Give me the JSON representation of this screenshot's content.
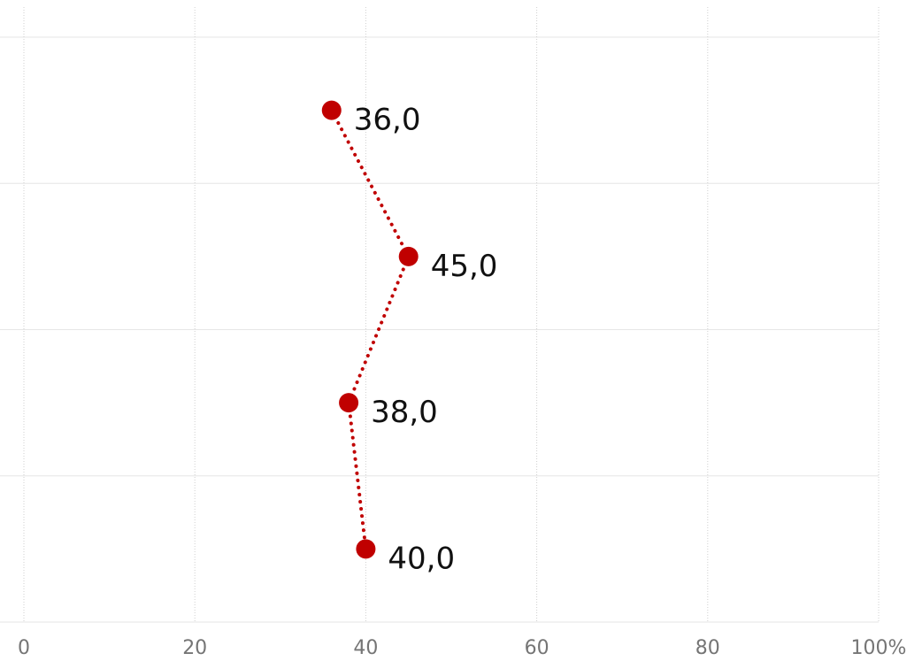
{
  "chart_data": {
    "type": "line",
    "orientation": "horizontal-values",
    "title": "",
    "xlabel": "",
    "ylabel": "",
    "xlim": [
      0,
      100
    ],
    "x_ticks": [
      0,
      20,
      40,
      60,
      80,
      100
    ],
    "x_tick_labels": [
      "0",
      "20",
      "40",
      "60",
      "80",
      "100%"
    ],
    "categories": [
      "",
      "",
      "",
      ""
    ],
    "series": [
      {
        "values": [
          36,
          45,
          38,
          40
        ],
        "labels": [
          "36,0",
          "45,0",
          "38,0",
          "40,0"
        ],
        "color": "#C00000",
        "line_style": "dotted",
        "marker": "circle"
      }
    ],
    "grid": true,
    "legend": "none",
    "colors": {
      "series": "#C00000",
      "grid": "#e6e6e6",
      "vertical_grid": "#cfcfcf",
      "tick_label": "#757575",
      "data_label": "#111111"
    }
  }
}
